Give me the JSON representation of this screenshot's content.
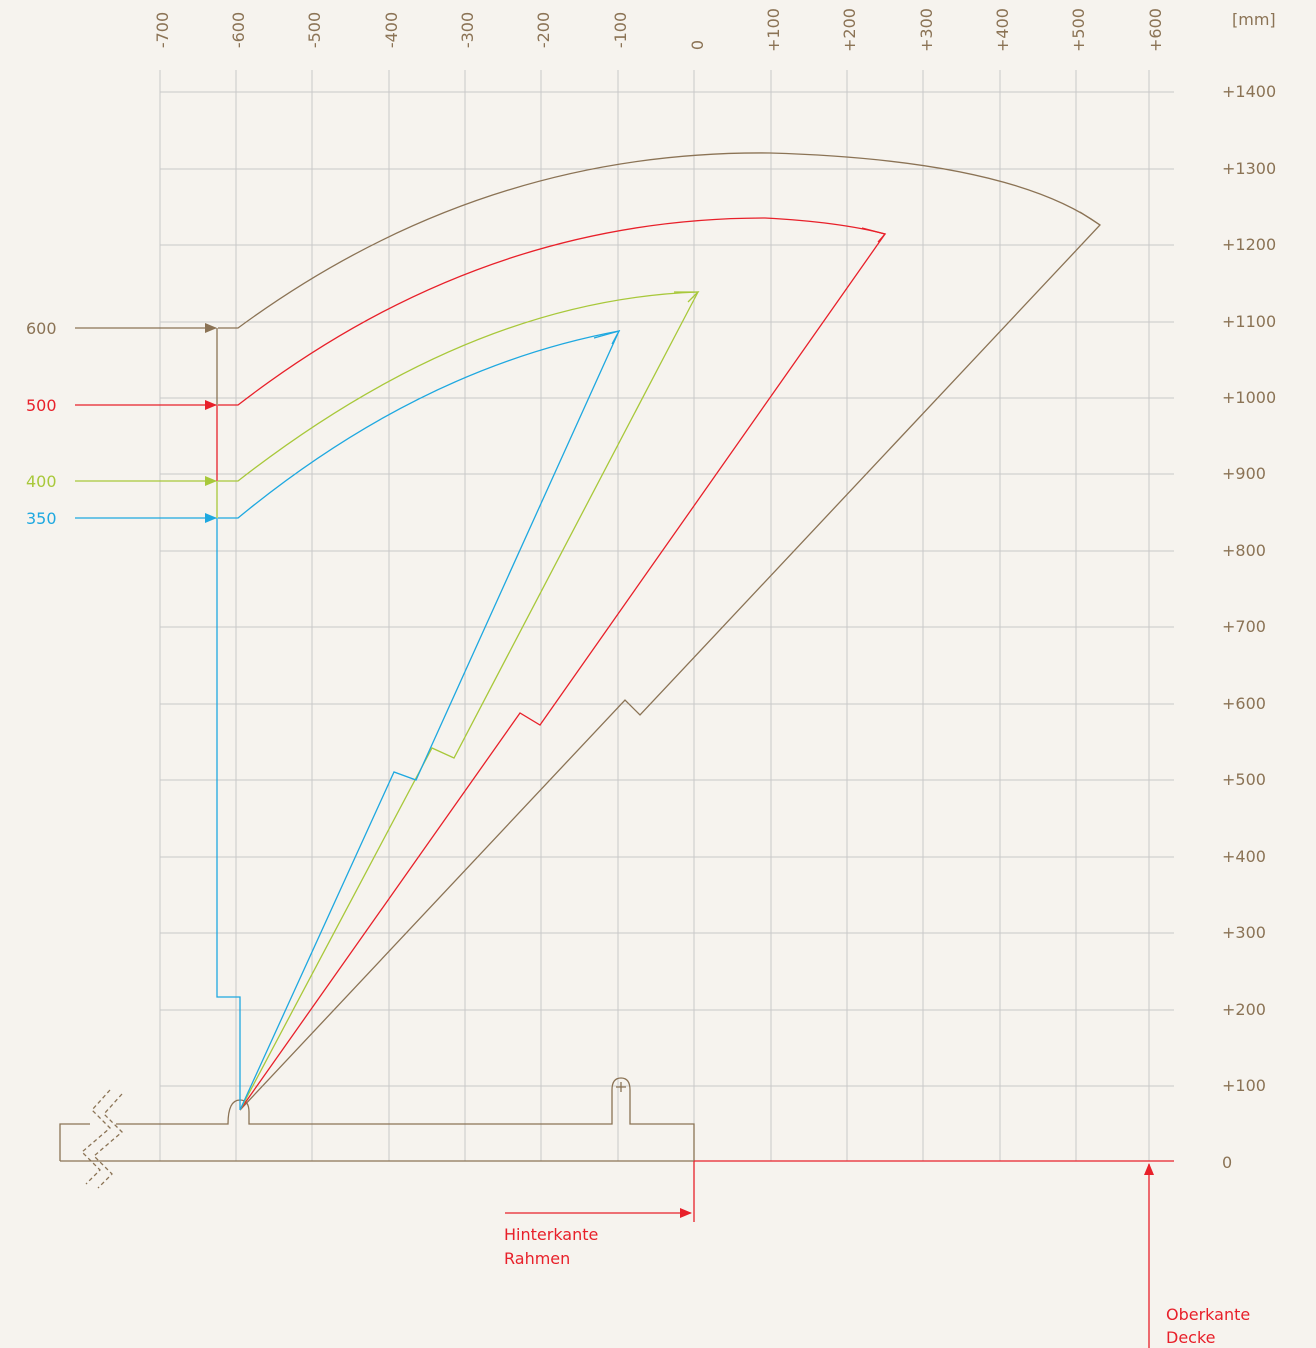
{
  "unit_label": "[mm]",
  "x_ticks": [
    "-700",
    "-600",
    "-500",
    "-400",
    "-300",
    "-200",
    "-100",
    "0",
    "+100",
    "+200",
    "+300",
    "+400",
    "+500",
    "+600"
  ],
  "y_ticks": [
    "+1400",
    "+1300",
    "+1200",
    "+1100",
    "+1000",
    "+900",
    "+800",
    "+700",
    "+600",
    "+500",
    "+400",
    "+300",
    "+200",
    "+100",
    "0"
  ],
  "colors": {
    "brown": "#8b7355",
    "red": "#e8202a",
    "green": "#a8c83a",
    "blue": "#1ea8e0",
    "grid": "#c8c8c8"
  },
  "series": [
    {
      "label": "600",
      "color": "brown"
    },
    {
      "label": "500",
      "color": "red"
    },
    {
      "label": "400",
      "color": "green"
    },
    {
      "label": "350",
      "color": "blue"
    }
  ],
  "annotations": {
    "frame_edge": [
      "Hinterkante",
      "Rahmen"
    ],
    "ceiling_top": [
      "Oberkante",
      "Decke"
    ]
  }
}
